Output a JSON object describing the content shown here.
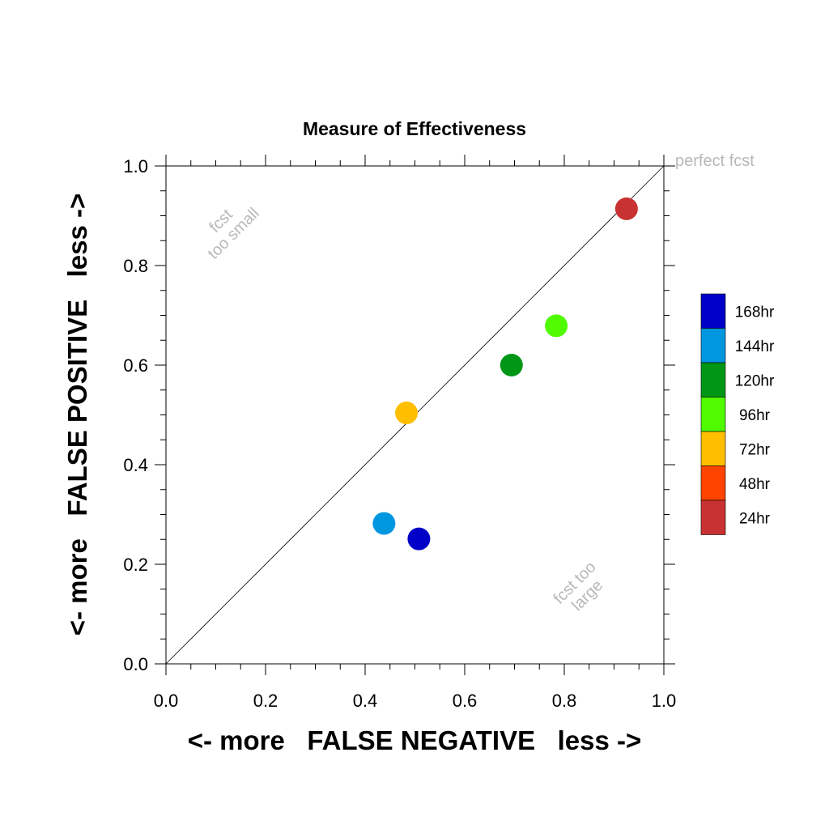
{
  "chart_data": {
    "type": "scatter",
    "title": "Measure of Effectiveness",
    "xlabel": "<- more   FALSE NEGATIVE   less ->",
    "ylabel": "<- more   FALSE POSITIVE   less ->",
    "xlim": [
      0.0,
      1.0
    ],
    "ylim": [
      0.0,
      1.0
    ],
    "xticks": [
      "0.0",
      "0.2",
      "0.4",
      "0.6",
      "0.8",
      "1.0"
    ],
    "yticks": [
      "0.0",
      "0.2",
      "0.4",
      "0.6",
      "0.8",
      "1.0"
    ],
    "grid": false,
    "reference_line": "y = x",
    "legend_position": "right",
    "annotations": {
      "perfect": "perfect fcst",
      "too_small_line1": "fcst",
      "too_small_line2": "too small",
      "too_large_line1": "fcst too",
      "too_large_line2": "large"
    },
    "series": [
      {
        "name": "168hr",
        "color": "#0000c8",
        "x": 0.508,
        "y": 0.251
      },
      {
        "name": "144hr",
        "color": "#0096e0",
        "x": 0.438,
        "y": 0.282
      },
      {
        "name": "120hr",
        "color": "#009616",
        "x": 0.694,
        "y": 0.6
      },
      {
        "name": "96hr",
        "color": "#50fa00",
        "x": 0.784,
        "y": 0.679
      },
      {
        "name": "72hr",
        "color": "#ffbe00",
        "x": 0.483,
        "y": 0.504
      },
      {
        "name": "48hr",
        "color": "#ff4400",
        "x": null,
        "y": null
      },
      {
        "name": "24hr",
        "color": "#c83232",
        "x": 0.925,
        "y": 0.914
      }
    ]
  }
}
